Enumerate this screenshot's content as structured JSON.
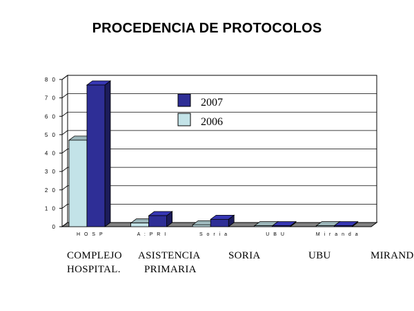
{
  "chart_data": {
    "type": "bar",
    "title": "PROCEDENCIA DE PROTOCOLOS",
    "categories": [
      "H O S P",
      "A : P R I",
      "S o r i a",
      "U B U",
      "M i r a n d a"
    ],
    "series": [
      {
        "name": "2006",
        "values": [
          47,
          2,
          1,
          0.5,
          0.5
        ],
        "color": "#c3e3e8"
      },
      {
        "name": "2007",
        "values": [
          77,
          6,
          4,
          0.5,
          0.5
        ],
        "color": "#2e2e96"
      }
    ],
    "yticks": [
      "0",
      "1 0",
      "2 0",
      "3 0",
      "4 0",
      "5 0",
      "6 0",
      "7 0",
      "8 0"
    ],
    "ylim": [
      0,
      80
    ],
    "grid": true,
    "legend_position": "top-center",
    "three_d": true
  },
  "captions": [
    {
      "line1": "COMPLEJO",
      "line2": "HOSPITAL."
    },
    {
      "line1": "ASISTENCIA",
      "line2": "PRIMARIA"
    },
    {
      "line1": "SORIA",
      "line2": ""
    },
    {
      "line1": "UBU",
      "line2": ""
    },
    {
      "line1": "MIRANDA",
      "line2": ""
    }
  ]
}
